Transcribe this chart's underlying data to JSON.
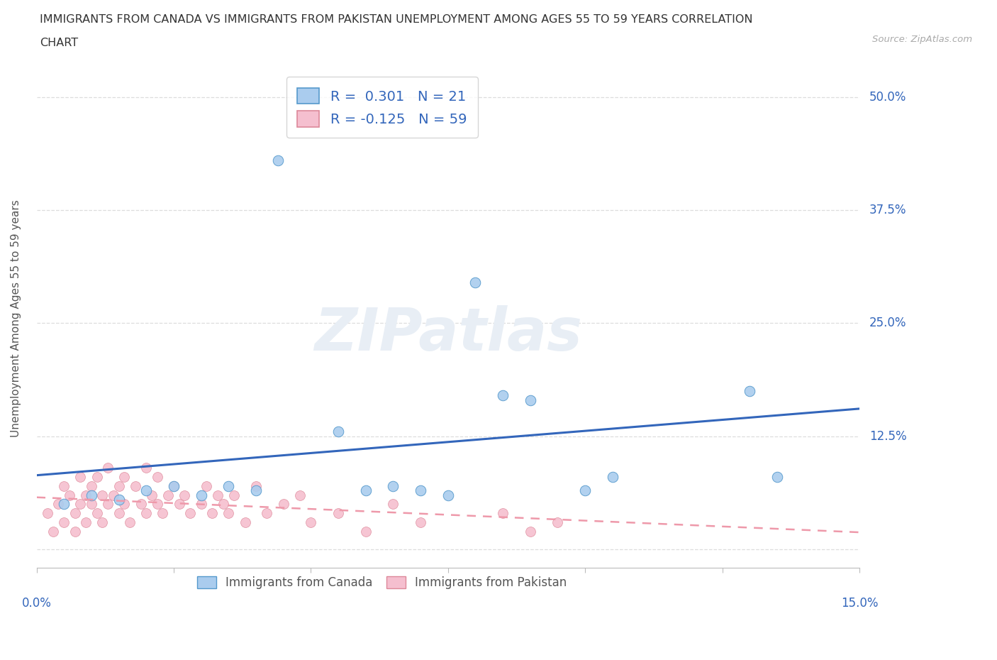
{
  "title_line1": "IMMIGRANTS FROM CANADA VS IMMIGRANTS FROM PAKISTAN UNEMPLOYMENT AMONG AGES 55 TO 59 YEARS CORRELATION",
  "title_line2": "CHART",
  "source": "Source: ZipAtlas.com",
  "ylabel": "Unemployment Among Ages 55 to 59 years",
  "xlim": [
    0.0,
    0.15
  ],
  "ylim": [
    -0.02,
    0.53
  ],
  "canada_color": "#aaccee",
  "canada_edge": "#5599cc",
  "pakistan_color": "#f5bfcf",
  "pakistan_edge": "#dd8899",
  "trendline_canada_color": "#3366bb",
  "trendline_pakistan_color": "#ee99aa",
  "ytick_positions": [
    0.0,
    0.125,
    0.25,
    0.375,
    0.5
  ],
  "ytick_right_labels": [
    "",
    "12.5%",
    "25.0%",
    "37.5%",
    "50.0%"
  ],
  "grid_color": "#dddddd",
  "watermark": "ZIPatlas",
  "background_color": "#ffffff",
  "R_canada": 0.301,
  "N_canada": 21,
  "R_pakistan": -0.125,
  "N_pakistan": 59,
  "canada_label": "Immigrants from Canada",
  "pakistan_label": "Immigrants from Pakistan",
  "canada_x": [
    0.005,
    0.01,
    0.015,
    0.02,
    0.025,
    0.03,
    0.035,
    0.04,
    0.044,
    0.055,
    0.06,
    0.065,
    0.07,
    0.075,
    0.08,
    0.085,
    0.09,
    0.1,
    0.105,
    0.13,
    0.135
  ],
  "canada_y": [
    0.05,
    0.06,
    0.055,
    0.065,
    0.07,
    0.06,
    0.07,
    0.065,
    0.43,
    0.13,
    0.065,
    0.07,
    0.065,
    0.06,
    0.295,
    0.17,
    0.165,
    0.065,
    0.08,
    0.175,
    0.08
  ],
  "pakistan_x": [
    0.002,
    0.003,
    0.004,
    0.005,
    0.005,
    0.006,
    0.007,
    0.007,
    0.008,
    0.008,
    0.009,
    0.009,
    0.01,
    0.01,
    0.011,
    0.011,
    0.012,
    0.012,
    0.013,
    0.013,
    0.014,
    0.015,
    0.015,
    0.016,
    0.016,
    0.017,
    0.018,
    0.019,
    0.02,
    0.02,
    0.021,
    0.022,
    0.022,
    0.023,
    0.024,
    0.025,
    0.026,
    0.027,
    0.028,
    0.03,
    0.031,
    0.032,
    0.033,
    0.034,
    0.035,
    0.036,
    0.038,
    0.04,
    0.042,
    0.045,
    0.048,
    0.05,
    0.055,
    0.06,
    0.065,
    0.07,
    0.085,
    0.09,
    0.095
  ],
  "pakistan_y": [
    0.04,
    0.02,
    0.05,
    0.07,
    0.03,
    0.06,
    0.04,
    0.02,
    0.05,
    0.08,
    0.03,
    0.06,
    0.05,
    0.07,
    0.04,
    0.08,
    0.06,
    0.03,
    0.05,
    0.09,
    0.06,
    0.04,
    0.07,
    0.05,
    0.08,
    0.03,
    0.07,
    0.05,
    0.04,
    0.09,
    0.06,
    0.05,
    0.08,
    0.04,
    0.06,
    0.07,
    0.05,
    0.06,
    0.04,
    0.05,
    0.07,
    0.04,
    0.06,
    0.05,
    0.04,
    0.06,
    0.03,
    0.07,
    0.04,
    0.05,
    0.06,
    0.03,
    0.04,
    0.02,
    0.05,
    0.03,
    0.04,
    0.02,
    0.03
  ]
}
